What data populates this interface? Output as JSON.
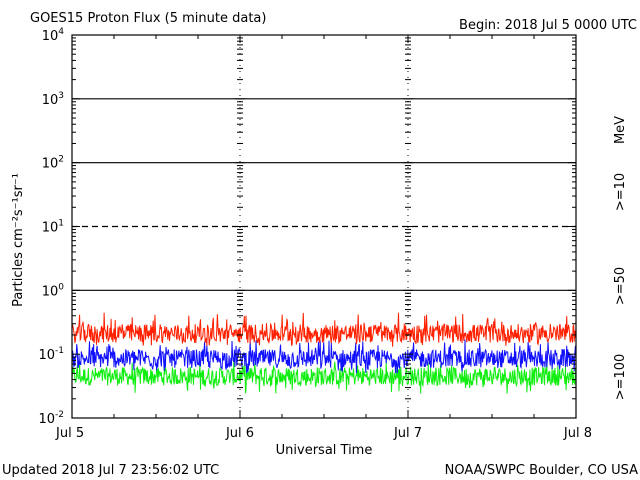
{
  "header": {
    "title": "GOES15 Proton Flux (5 minute data)",
    "begin": "Begin: 2018 Jul 5 0000 UTC"
  },
  "footer": {
    "updated": "Updated 2018 Jul  7 23:56:02 UTC",
    "credit": "NOAA/SWPC Boulder, CO USA"
  },
  "colors": {
    "ge10": "#ff2000",
    "ge50": "#1010ff",
    "ge100": "#10ee10",
    "axis": "#000000"
  },
  "chart_data": {
    "type": "line",
    "title": "GOES15 Proton Flux (5 minute data)",
    "xlabel": "Universal Time",
    "ylabel": "Particles cm⁻²s⁻¹sr⁻¹",
    "yscale": "log",
    "ylim": [
      0.01,
      10000
    ],
    "xlim": [
      "2018-07-05",
      "2018-07-08"
    ],
    "xticks": [
      "Jul 5",
      "Jul 6",
      "Jul 7",
      "Jul 8"
    ],
    "yticks": [
      {
        "base": "10",
        "exp": "-2"
      },
      {
        "base": "10",
        "exp": "-1"
      },
      {
        "base": "10",
        "exp": "0"
      },
      {
        "base": "10",
        "exp": "1"
      },
      {
        "base": "10",
        "exp": "2"
      },
      {
        "base": "10",
        "exp": "3"
      },
      {
        "base": "10",
        "exp": "4"
      }
    ],
    "reference_lines": [
      {
        "value": 1,
        "style": "solid"
      },
      {
        "value": 10,
        "style": "dashed"
      },
      {
        "value": 100,
        "style": "solid"
      },
      {
        "value": 1000,
        "style": "solid"
      }
    ],
    "legend_position": "right",
    "legend_unit": "MeV",
    "series": [
      {
        "name": ">=10",
        "color": "#ff2000",
        "typical": 0.21,
        "min": 0.13,
        "max": 0.45
      },
      {
        "name": ">=50",
        "color": "#1010ff",
        "typical": 0.085,
        "min": 0.05,
        "max": 0.17
      },
      {
        "name": ">=100",
        "color": "#10ee10",
        "typical": 0.045,
        "min": 0.024,
        "max": 0.08
      }
    ],
    "grid": false
  }
}
